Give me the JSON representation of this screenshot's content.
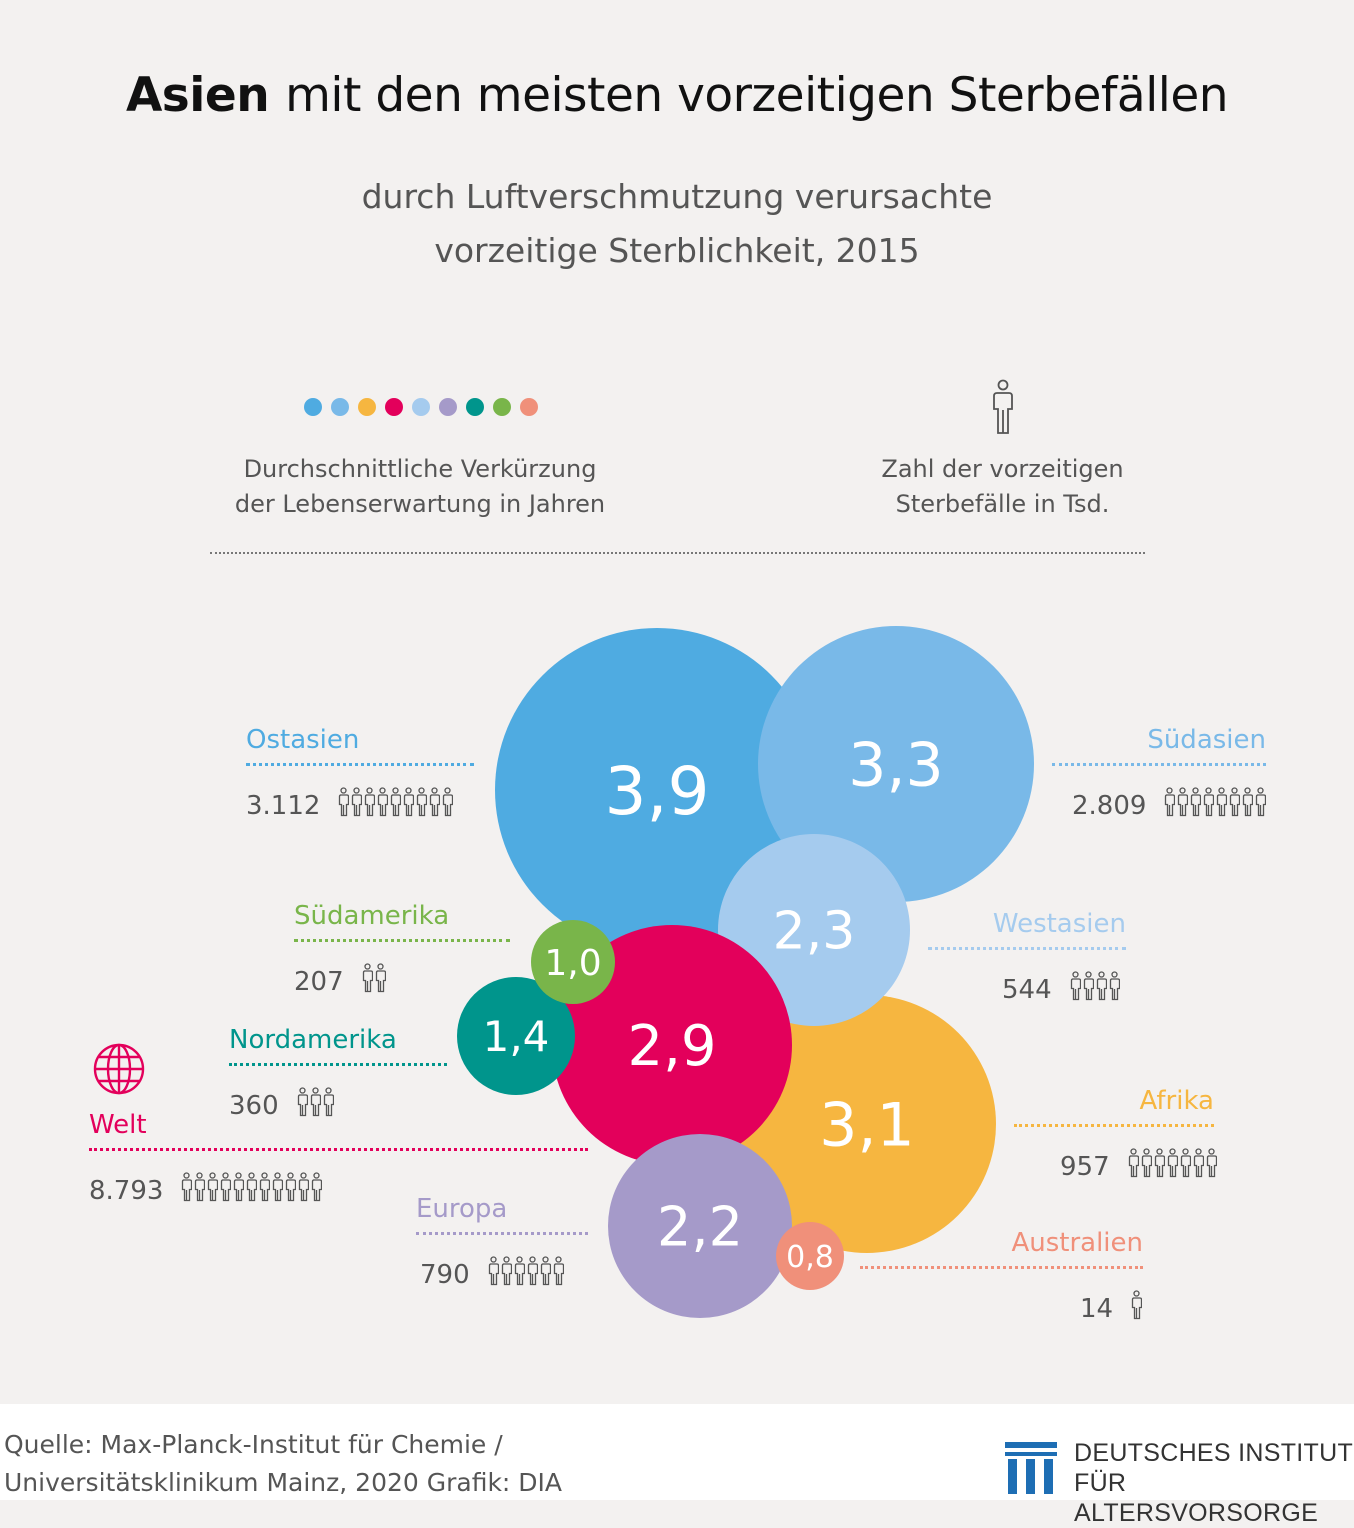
{
  "title_bold": "Asien",
  "title_rest": "mit den meisten vorzeitigen Sterbefällen",
  "subtitle_1": "durch Luftverschmutzung verursachte",
  "subtitle_2": "vorzeitige Sterblichkeit, 2015",
  "legend": {
    "dots_colors": [
      "#4fabe1",
      "#79b9e8",
      "#f6b640",
      "#e3005b",
      "#a5cbee",
      "#a59ac9",
      "#00958c",
      "#79b54a",
      "#f0907a"
    ],
    "bubble_label_1": "Durchschnittliche Verkürzung",
    "bubble_label_2": "der Lebenserwartung in Jahren",
    "person_label_1": "Zahl der vorzeitigen",
    "person_label_2": "Sterbefälle in Tsd.",
    "person_icon": "person-icon"
  },
  "chart_data": {
    "type": "bubble",
    "series": [
      {
        "name": "Ostasien",
        "years": "3,9",
        "deaths": "3.112",
        "people_icons": 9,
        "color": "#4fabe1"
      },
      {
        "name": "Südasien",
        "years": "3,3",
        "deaths": "2.809",
        "people_icons": 8,
        "color": "#79b9e8"
      },
      {
        "name": "Westasien",
        "years": "2,3",
        "deaths": "544",
        "people_icons": 4,
        "color": "#a5cbee"
      },
      {
        "name": "Südamerika",
        "years": "1,0",
        "deaths": "207",
        "people_icons": 2,
        "color": "#79b54a"
      },
      {
        "name": "Nordamerika",
        "years": "1,4",
        "deaths": "360",
        "people_icons": 3,
        "color": "#00958c"
      },
      {
        "name": "Afrika",
        "years": "3,1",
        "deaths": "957",
        "people_icons": 7,
        "color": "#f6b640"
      },
      {
        "name": "Europa",
        "years": "2,2",
        "deaths": "790",
        "people_icons": 6,
        "color": "#a59ac9"
      },
      {
        "name": "Australien",
        "years": "0,8",
        "deaths": "14",
        "people_icons": 1,
        "color": "#f0907a"
      },
      {
        "name": "Welt",
        "years": "2,9",
        "deaths": "8.793",
        "people_icons": 11,
        "color": "#e3005b"
      }
    ]
  },
  "footer": {
    "source_1": "Quelle: Max-Planck-Institut für Chemie /",
    "source_2": "Universitätsklinikum Mainz, 2020  Grafik: DIA",
    "logo_1": "DEUTSCHES INSTITUT",
    "logo_2": "FÜR ALTERSVORSORGE"
  }
}
